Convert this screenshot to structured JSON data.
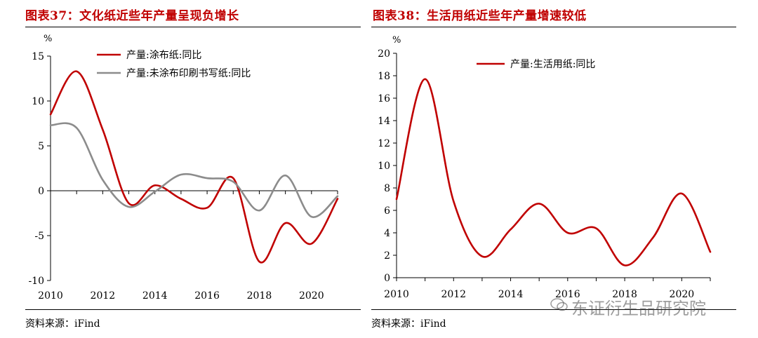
{
  "figures": [
    {
      "title": "图表37：文化纸近些年产量呈现负增长",
      "source": "资料来源：iFind",
      "unit": "%",
      "chart_data": {
        "type": "line",
        "x": [
          2010,
          2011,
          2012,
          2013,
          2014,
          2015,
          2016,
          2017,
          2018,
          2019,
          2020,
          2021
        ],
        "x_ticks": [
          2010,
          2012,
          2014,
          2016,
          2018,
          2020
        ],
        "y_ticks": [
          -10,
          -5,
          0,
          5,
          10,
          15
        ],
        "ylim": [
          -10,
          15
        ],
        "xlim": [
          2010,
          2021
        ],
        "legend_position": "top-center",
        "series": [
          {
            "name": "产量:涂布纸:同比",
            "color": "#c00000",
            "values": [
              8.5,
              13.3,
              6.8,
              -1.4,
              0.6,
              -0.9,
              -1.9,
              1.4,
              -7.9,
              -3.6,
              -5.9,
              -0.9
            ]
          },
          {
            "name": "产量:未涂布印刷书写纸:同比",
            "color": "#8c8c8c",
            "values": [
              7.3,
              7.0,
              1.2,
              -1.8,
              -0.1,
              1.8,
              1.4,
              1.0,
              -2.2,
              1.7,
              -2.9,
              -0.6
            ]
          }
        ]
      }
    },
    {
      "title": "图表38：生活用纸近些年产量增速较低",
      "source": "资料来源：iFind",
      "unit": "%",
      "chart_data": {
        "type": "line",
        "x": [
          2010,
          2011,
          2012,
          2013,
          2014,
          2015,
          2016,
          2017,
          2018,
          2019,
          2020,
          2021
        ],
        "x_ticks": [
          2010,
          2012,
          2014,
          2016,
          2018,
          2020
        ],
        "y_ticks": [
          0,
          2,
          4,
          6,
          8,
          10,
          12,
          14,
          16,
          18,
          20
        ],
        "ylim": [
          0,
          20
        ],
        "xlim": [
          2010,
          2021
        ],
        "legend_position": "top-center",
        "series": [
          {
            "name": "产量:生活用纸:同比",
            "color": "#c00000",
            "values": [
              7.0,
              17.7,
              6.8,
              1.9,
              4.3,
              6.6,
              4.0,
              4.4,
              1.1,
              3.6,
              7.5,
              2.3
            ]
          }
        ]
      }
    }
  ],
  "watermark": "东证衍生品研究院"
}
